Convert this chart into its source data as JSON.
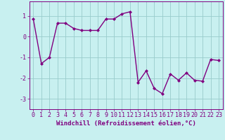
{
  "x": [
    0,
    1,
    2,
    3,
    4,
    5,
    6,
    7,
    8,
    9,
    10,
    11,
    12,
    13,
    14,
    15,
    16,
    17,
    18,
    19,
    20,
    21,
    22,
    23
  ],
  "y": [
    0.85,
    -1.3,
    -1.0,
    0.65,
    0.65,
    0.4,
    0.3,
    0.3,
    0.3,
    0.85,
    0.85,
    1.1,
    1.2,
    -2.2,
    -1.65,
    -2.5,
    -2.75,
    -1.8,
    -2.1,
    -1.75,
    -2.1,
    -2.15,
    -1.1,
    -1.15
  ],
  "line_color": "#800080",
  "marker": "D",
  "marker_size": 2.0,
  "line_width": 1.0,
  "bg_color": "#c8f0f0",
  "grid_color": "#99cccc",
  "xlabel": "Windchill (Refroidissement éolien,°C)",
  "xlabel_fontsize": 6.5,
  "tick_fontsize": 6.0,
  "xlim": [
    -0.5,
    23.5
  ],
  "ylim": [
    -3.5,
    1.7
  ],
  "yticks": [
    -3,
    -2,
    -1,
    0,
    1
  ],
  "xticks": [
    0,
    1,
    2,
    3,
    4,
    5,
    6,
    7,
    8,
    9,
    10,
    11,
    12,
    13,
    14,
    15,
    16,
    17,
    18,
    19,
    20,
    21,
    22,
    23
  ]
}
